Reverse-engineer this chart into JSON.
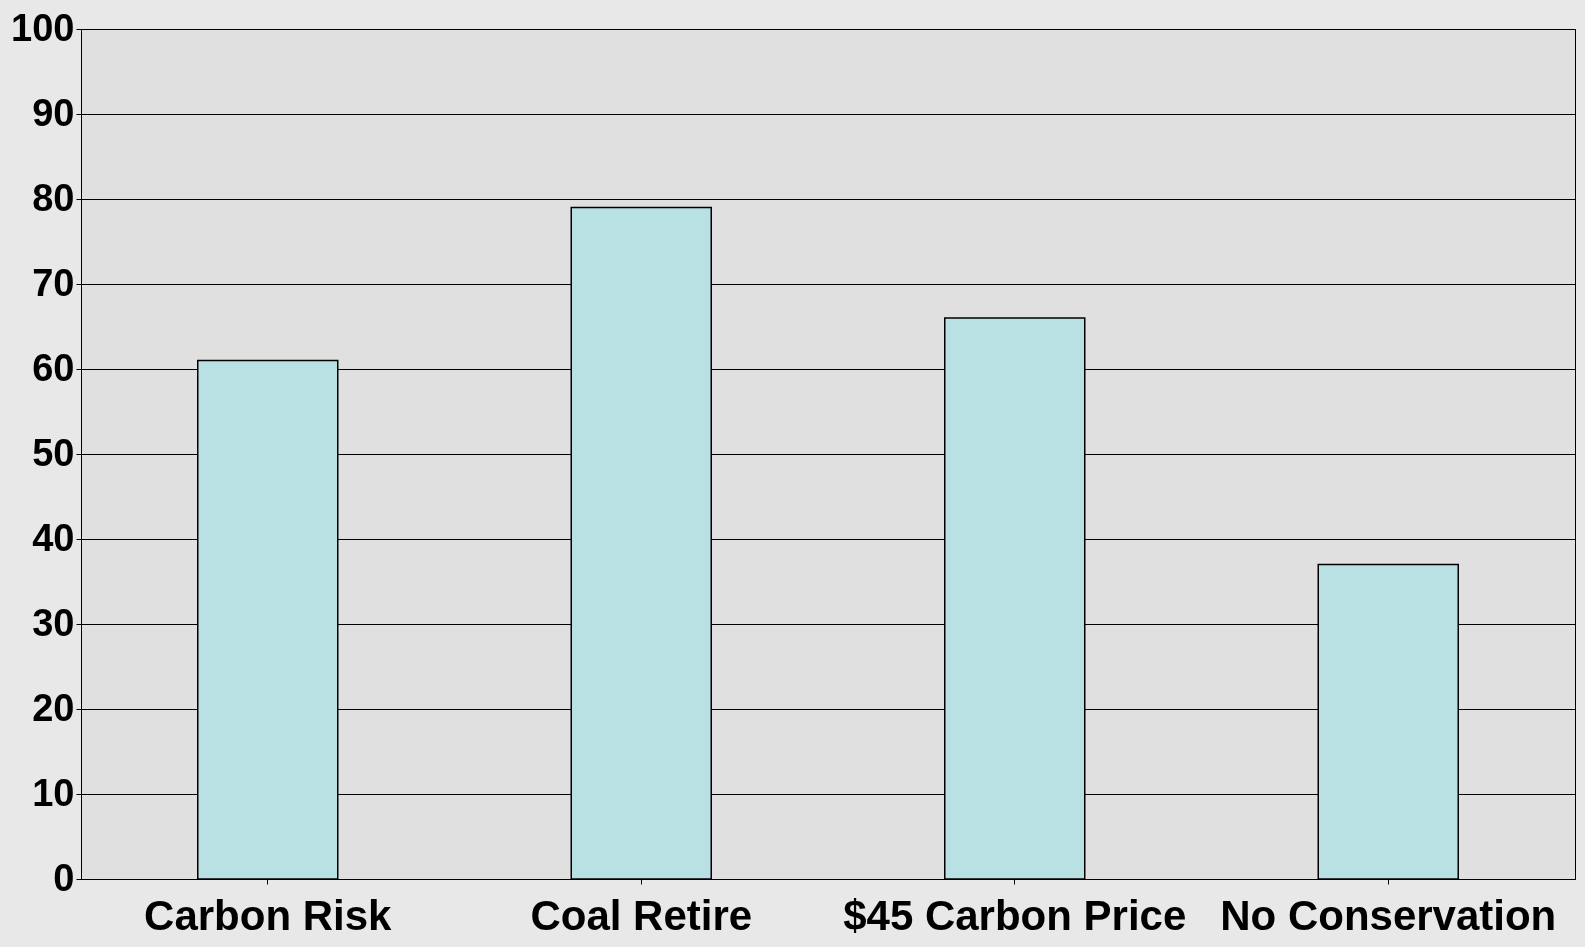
{
  "chart_data": {
    "type": "bar",
    "categories": [
      "Carbon Risk",
      "Coal Retire",
      "$45 Carbon Price",
      "No Conservation"
    ],
    "values": [
      61,
      79,
      66,
      37
    ],
    "color": "#b9e0e3",
    "ylim": [
      0,
      100
    ],
    "yticks": [
      0,
      10,
      20,
      30,
      40,
      50,
      60,
      70,
      80,
      90,
      100
    ],
    "grid": "y"
  }
}
